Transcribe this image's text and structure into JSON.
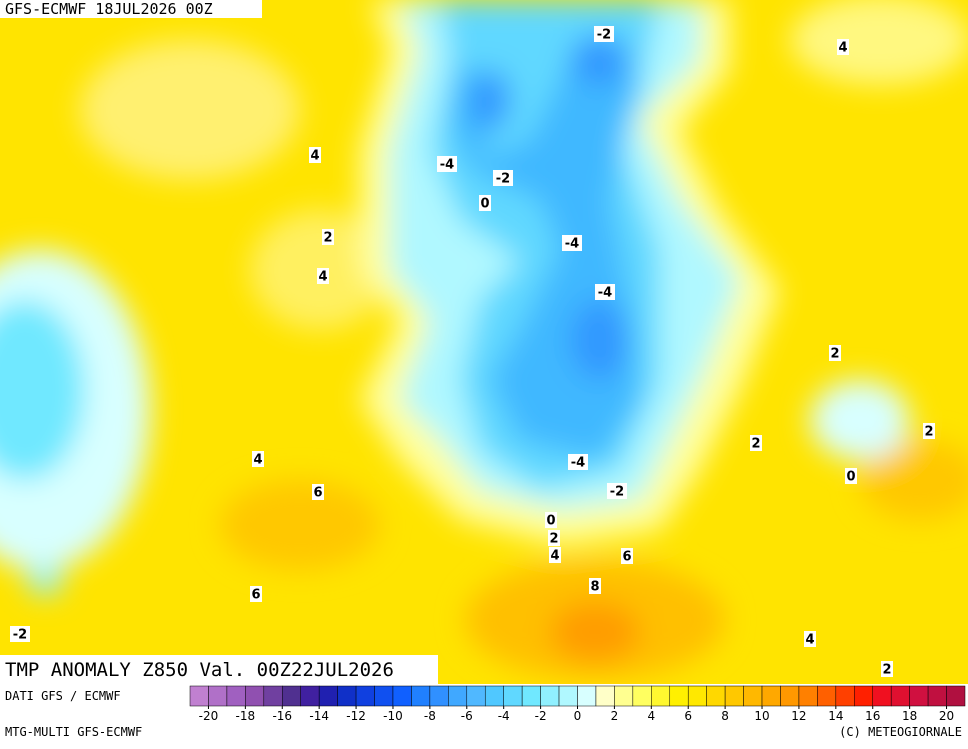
{
  "header": {
    "title": "GFS-ECMWF 18JUL2026 00Z"
  },
  "map": {
    "title": "TMP ANOMALY Z850 Val. 00Z22JUL2026",
    "contour_labels": [
      -2,
      4,
      4,
      -4,
      -2,
      0,
      2,
      -4,
      4,
      -4,
      2,
      2,
      2,
      0,
      4,
      -4,
      6,
      -2,
      0,
      2,
      4,
      6,
      8,
      6,
      -2,
      4,
      2
    ]
  },
  "colorbar": {
    "lim": [
      -21,
      21
    ],
    "ticks": [
      -20,
      -18,
      -16,
      -14,
      -12,
      -10,
      -8,
      -6,
      -4,
      -2,
      0,
      2,
      4,
      6,
      8,
      10,
      12,
      14,
      16,
      18,
      20
    ],
    "colors": [
      "#c080d0",
      "#b070c8",
      "#a060c0",
      "#9050b0",
      "#7040a0",
      "#503090",
      "#4020a0",
      "#2020b0",
      "#1030c8",
      "#1040e0",
      "#1050f0",
      "#1060ff",
      "#2080ff",
      "#3090ff",
      "#40a8ff",
      "#50b8ff",
      "#50c8ff",
      "#60d8ff",
      "#70e8ff",
      "#90f0ff",
      "#b0f8ff",
      "#d8ffff",
      "#ffffc8",
      "#ffff90",
      "#ffff60",
      "#fff830",
      "#fff000",
      "#ffe800",
      "#ffd800",
      "#ffc800",
      "#ffb800",
      "#ffa800",
      "#ff9800",
      "#ff8000",
      "#ff6000",
      "#ff4000",
      "#ff2000",
      "#f01020",
      "#e01030",
      "#d01040",
      "#c01040",
      "#b01040"
    ]
  },
  "footer": {
    "source": "DATI GFS / ECMWF",
    "model": "MTG-MULTI GFS-ECMWF",
    "credit": "(C) METEOGIORNALE"
  }
}
